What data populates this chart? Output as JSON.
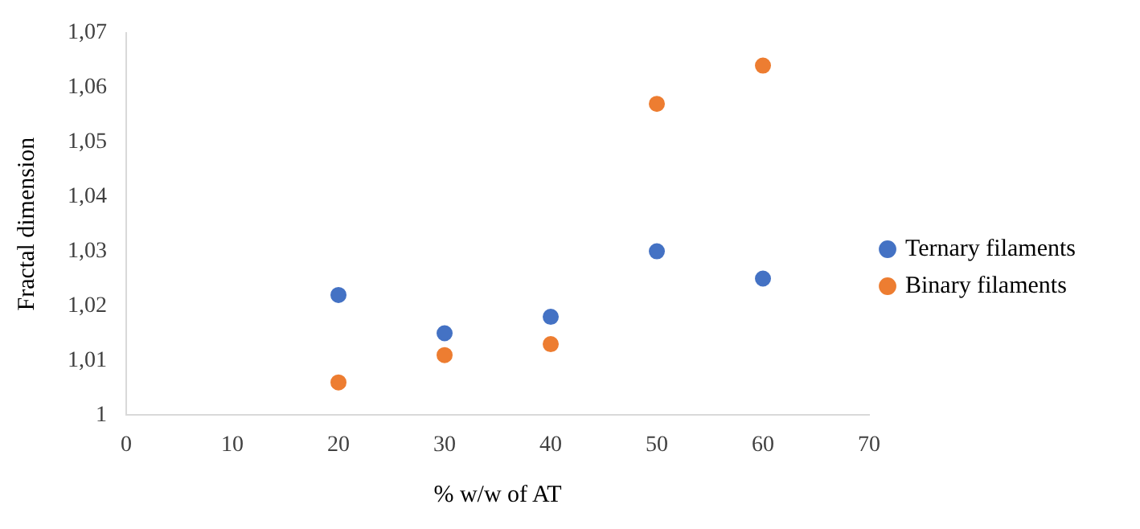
{
  "chart_data": {
    "type": "scatter",
    "xlabel": "% w/w of AT",
    "ylabel": "Fractal dimension",
    "x": [
      20,
      30,
      40,
      50,
      60
    ],
    "series": [
      {
        "name": "Ternary filaments",
        "color": "#4472c4",
        "values": [
          1.022,
          1.015,
          1.018,
          1.03,
          1.025
        ]
      },
      {
        "name": "Binary filaments",
        "color": "#ed7d31",
        "values": [
          1.006,
          1.011,
          1.013,
          1.057,
          1.064
        ]
      }
    ],
    "xlim": [
      0,
      70
    ],
    "xticks": [
      0,
      10,
      20,
      30,
      40,
      50,
      60,
      70
    ],
    "ylim": [
      1,
      1.07
    ],
    "yticks": [
      1,
      {
        "value": 1.01,
        "label": "1,01"
      },
      {
        "value": 1.02,
        "label": "1,02"
      },
      {
        "value": 1.03,
        "label": "1,03"
      },
      {
        "value": 1.04,
        "label": "1,04"
      },
      {
        "value": 1.05,
        "label": "1,05"
      },
      {
        "value": 1.06,
        "label": "1,06"
      },
      {
        "value": 1.07,
        "label": "1,07"
      }
    ],
    "grid": false,
    "legend": "right",
    "marker": "circle"
  }
}
